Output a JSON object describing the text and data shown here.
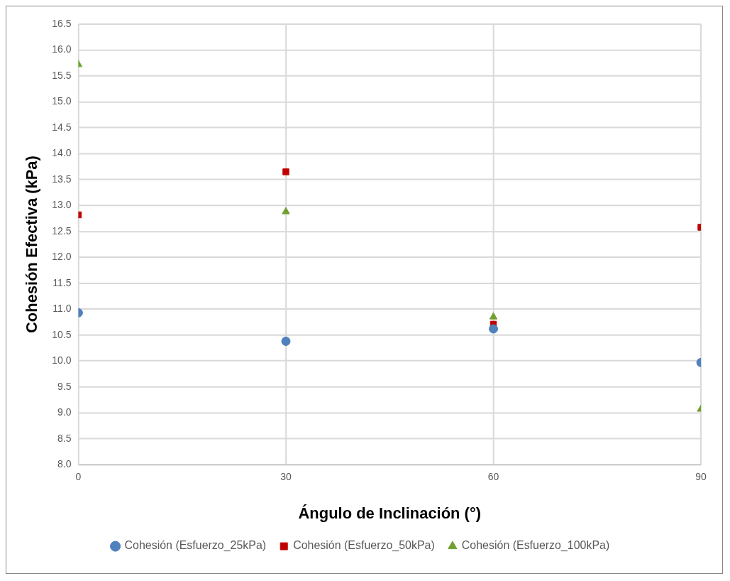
{
  "chart_data": {
    "type": "scatter",
    "xlabel": "Ángulo de Inclinación (°)",
    "ylabel": "Cohesión Efectiva (kPa)",
    "x": [
      0,
      30,
      60,
      90
    ],
    "series": [
      {
        "name": "Cohesión (Esfuerzo_25kPa)",
        "color": "#4f81bd",
        "marker": "circle",
        "values": [
          10.93,
          10.38,
          10.62,
          9.97
        ]
      },
      {
        "name": "Cohesión (Esfuerzo_50kPa)",
        "color": "#c00000",
        "marker": "square",
        "values": [
          12.82,
          13.65,
          10.71,
          12.58
        ]
      },
      {
        "name": "Cohesión (Esfuerzo_100kPa)",
        "color": "#70a030",
        "marker": "triangle",
        "values": [
          15.72,
          12.88,
          10.85,
          9.07
        ]
      }
    ],
    "xlim": [
      0,
      90
    ],
    "xticks": [
      0,
      30,
      60,
      90
    ],
    "ylim": [
      8,
      16.5
    ],
    "yticks": [
      {
        "value": 8,
        "label": "8.0"
      },
      8.5,
      {
        "value": 9,
        "label": "9.0"
      },
      9.5,
      {
        "value": 10,
        "label": "10.0"
      },
      10.5,
      {
        "value": 11,
        "label": "11.0"
      },
      11.5,
      {
        "value": 12,
        "label": "12.0"
      },
      12.5,
      {
        "value": 13,
        "label": "13.0"
      },
      13.5,
      {
        "value": 14,
        "label": "14.0"
      },
      14.5,
      {
        "value": 15,
        "label": "15.0"
      },
      15.5,
      {
        "value": 16,
        "label": "16.0"
      },
      16.5
    ],
    "grid": true,
    "legend": "bottom"
  }
}
